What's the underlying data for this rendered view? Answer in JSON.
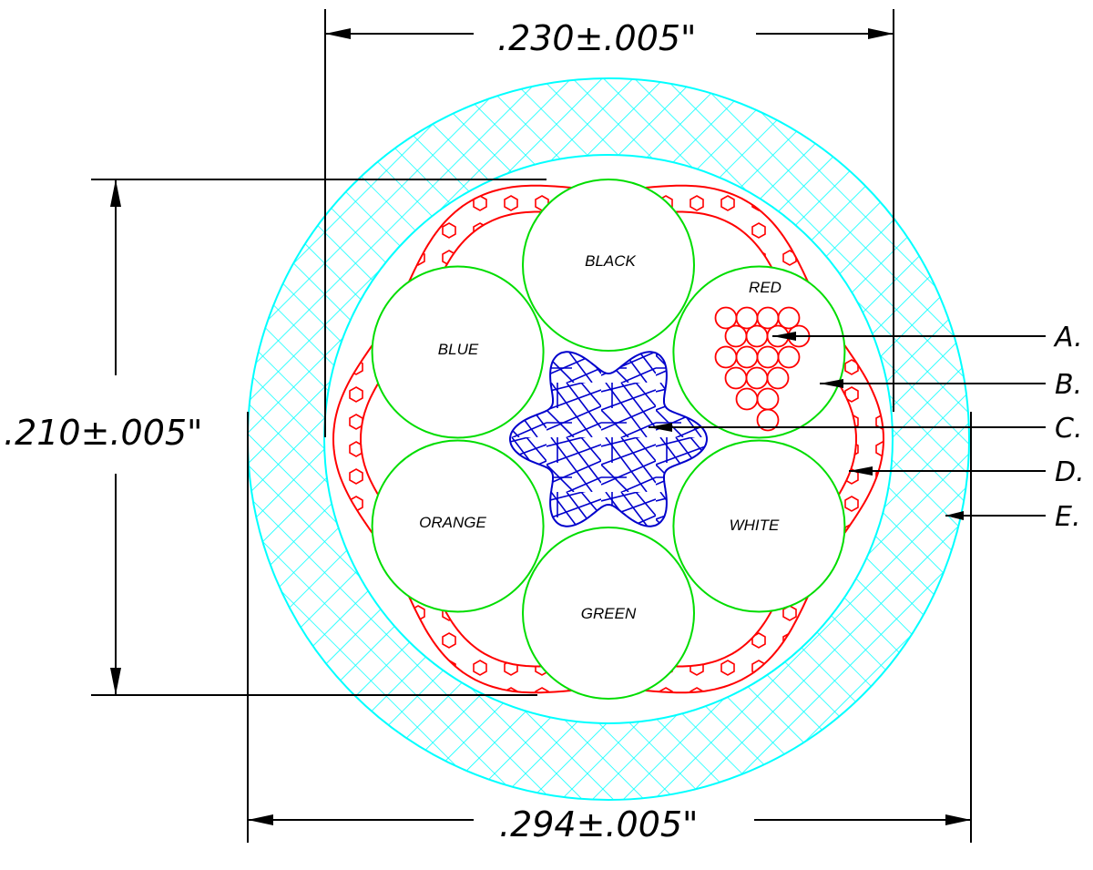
{
  "dimensions": {
    "top": ".230±.005\"",
    "left": ".210±.005\"",
    "bottom": ".294±.005\""
  },
  "conductors": {
    "black": "BLACK",
    "red": "RED",
    "blue": "BLUE",
    "orange": "ORANGE",
    "white": "WHITE",
    "green": "GREEN"
  },
  "callouts": {
    "a": "A.",
    "b": "B.",
    "c": "C.",
    "d": "D.",
    "e": "E."
  },
  "colors": {
    "jacket": "#00ffff",
    "shield": "#ff0000",
    "insulation": "#00dd00",
    "filler": "#0000cc",
    "strands": "#ff0000",
    "lines": "#000000"
  }
}
